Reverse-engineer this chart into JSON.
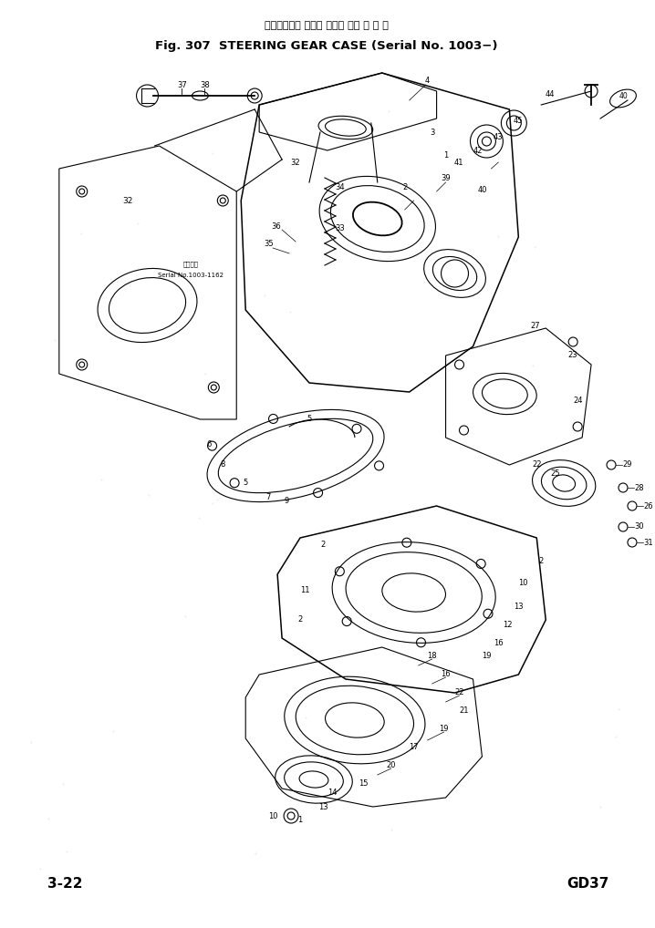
{
  "title_line1": "ステアリング ギヤー ケース （適 用 号 機",
  "title_line2": "Fig. 307  STEERING GEAR CASE (Serial No. 1003−)",
  "bottom_left": "3-22",
  "bottom_right": "GD37",
  "bg_color": "#ffffff",
  "drawing_color": "#000000",
  "fig_width": 7.18,
  "fig_height": 10.18,
  "dpi": 100
}
